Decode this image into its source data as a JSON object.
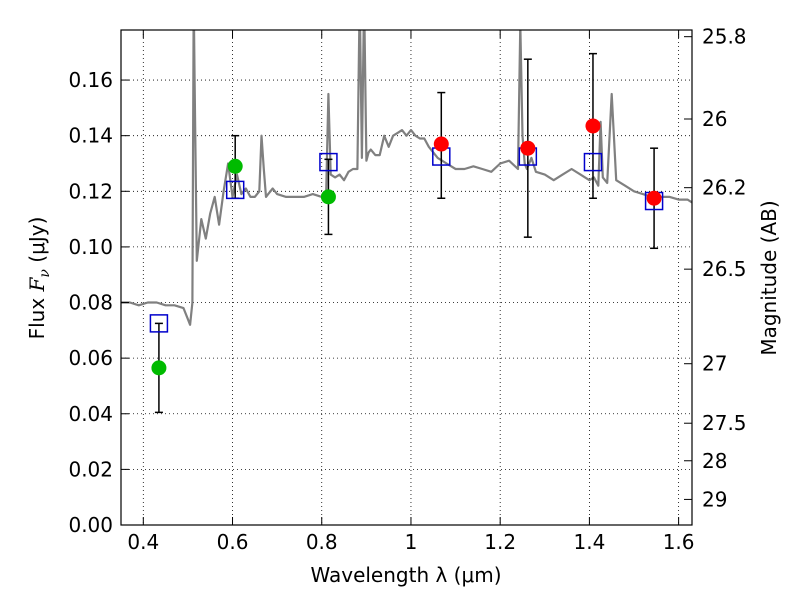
{
  "chart_data": {
    "type": "scatter",
    "xlabel": "Wavelength  λ (μm)",
    "ylabel": "Flux  F_ν  (μJy)",
    "ylabel_right": "Magnitude (AB)",
    "xlim": [
      0.35,
      1.63
    ],
    "ylim": [
      0,
      0.178
    ],
    "x_ticks": [
      "0.4",
      "0.6",
      "0.8",
      "1",
      "1.2",
      "1.4",
      "1.6"
    ],
    "x_tick_values": [
      0.4,
      0.6,
      0.8,
      1.0,
      1.2,
      1.4,
      1.6
    ],
    "y_ticks": [
      "0.00",
      "0.02",
      "0.04",
      "0.06",
      "0.08",
      "0.10",
      "0.12",
      "0.14",
      "0.16"
    ],
    "y_tick_values": [
      0,
      0.02,
      0.04,
      0.06,
      0.08,
      0.1,
      0.12,
      0.14,
      0.16
    ],
    "right_ticks": [
      {
        "label": "25.8",
        "flux": 0.1756
      },
      {
        "label": "26",
        "flux": 0.146
      },
      {
        "label": "26.2",
        "flux": 0.1213
      },
      {
        "label": "26.5",
        "flux": 0.092
      },
      {
        "label": "27",
        "flux": 0.058
      },
      {
        "label": "27.5",
        "flux": 0.0366
      },
      {
        "label": "28",
        "flux": 0.0231
      },
      {
        "label": "29",
        "flux": 0.0092
      }
    ],
    "grid": true,
    "colors": {
      "model": "#808080",
      "green_points": "#00bb00",
      "red_points": "#ff0000",
      "model_squares": "#0000cc",
      "errorbars": "#000000"
    },
    "series": [
      {
        "marker": "model-line",
        "x": [
          0.35,
          0.37,
          0.39,
          0.41,
          0.43,
          0.45,
          0.47,
          0.49,
          0.5,
          0.505,
          0.51,
          0.513,
          0.515,
          0.52,
          0.53,
          0.54,
          0.55,
          0.56,
          0.57,
          0.58,
          0.59,
          0.6,
          0.61,
          0.62,
          0.63,
          0.64,
          0.65,
          0.66,
          0.665,
          0.67,
          0.675,
          0.68,
          0.69,
          0.7,
          0.72,
          0.74,
          0.76,
          0.78,
          0.8,
          0.81,
          0.815,
          0.82,
          0.83,
          0.84,
          0.85,
          0.86,
          0.87,
          0.88,
          0.885,
          0.89,
          0.895,
          0.9,
          0.905,
          0.91,
          0.92,
          0.93,
          0.94,
          0.95,
          0.96,
          0.97,
          0.98,
          0.99,
          1.0,
          1.01,
          1.02,
          1.03,
          1.04,
          1.05,
          1.06,
          1.08,
          1.1,
          1.12,
          1.14,
          1.16,
          1.18,
          1.2,
          1.22,
          1.24,
          1.245,
          1.25,
          1.255,
          1.26,
          1.27,
          1.28,
          1.3,
          1.32,
          1.34,
          1.36,
          1.38,
          1.4,
          1.41,
          1.42,
          1.425,
          1.43,
          1.435,
          1.44,
          1.45,
          1.46,
          1.48,
          1.5,
          1.52,
          1.54,
          1.56,
          1.58,
          1.6,
          1.62,
          1.63
        ],
        "y": [
          0.08,
          0.08,
          0.079,
          0.08,
          0.08,
          0.079,
          0.079,
          0.078,
          0.074,
          0.072,
          0.08,
          0.19,
          0.16,
          0.095,
          0.11,
          0.103,
          0.112,
          0.118,
          0.108,
          0.12,
          0.13,
          0.118,
          0.126,
          0.119,
          0.121,
          0.118,
          0.118,
          0.12,
          0.14,
          0.128,
          0.118,
          0.119,
          0.121,
          0.119,
          0.118,
          0.118,
          0.118,
          0.119,
          0.118,
          0.12,
          0.155,
          0.126,
          0.125,
          0.126,
          0.124,
          0.127,
          0.128,
          0.128,
          0.19,
          0.132,
          0.19,
          0.131,
          0.134,
          0.135,
          0.133,
          0.133,
          0.14,
          0.136,
          0.14,
          0.141,
          0.142,
          0.14,
          0.142,
          0.14,
          0.139,
          0.139,
          0.136,
          0.134,
          0.132,
          0.13,
          0.128,
          0.128,
          0.129,
          0.128,
          0.127,
          0.13,
          0.131,
          0.128,
          0.18,
          0.14,
          0.13,
          0.128,
          0.132,
          0.127,
          0.126,
          0.124,
          0.126,
          0.128,
          0.126,
          0.124,
          0.125,
          0.122,
          0.145,
          0.125,
          0.124,
          0.123,
          0.155,
          0.124,
          0.122,
          0.12,
          0.119,
          0.118,
          0.118,
          0.118,
          0.117,
          0.117,
          0.116
        ]
      },
      {
        "marker": "green-circle",
        "x": [
          0.435,
          0.606,
          0.815
        ],
        "y": [
          0.0565,
          0.129,
          0.118
        ]
      },
      {
        "marker": "red-circle",
        "x": [
          1.068,
          1.262,
          1.408,
          1.545
        ],
        "y": [
          0.137,
          0.1355,
          0.1435,
          0.1175
        ]
      },
      {
        "marker": "blue-square",
        "x": [
          0.435,
          0.606,
          0.815,
          1.068,
          1.262,
          1.408,
          1.545
        ],
        "y": [
          0.0725,
          0.1205,
          0.1305,
          0.1325,
          0.1325,
          0.1305,
          0.1165
        ]
      },
      {
        "marker": "errorbar",
        "x": [
          0.435,
          0.606,
          0.815,
          1.068,
          1.262,
          1.408,
          1.545
        ],
        "low": [
          0.0405,
          0.1175,
          0.1045,
          0.1175,
          0.1035,
          0.1175,
          0.0995
        ],
        "high": [
          0.0725,
          0.14,
          0.1315,
          0.1555,
          0.1675,
          0.1695,
          0.1355
        ]
      }
    ]
  }
}
